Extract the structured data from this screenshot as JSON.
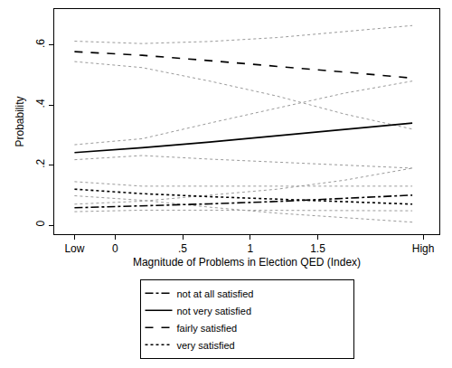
{
  "chart_data": {
    "type": "line",
    "x_label": "Magnitude of Problems in Election QED (Index)",
    "y_label": "Probability",
    "x": [
      -0.3,
      0.2,
      0.7,
      1.2,
      1.7,
      2.2
    ],
    "series": [
      {
        "name": "not at all satisfied",
        "color": "#000000",
        "line_style": "dashdot",
        "values": [
          0.058,
          0.064,
          0.071,
          0.079,
          0.089,
          0.1
        ],
        "lower": [
          0.045,
          0.05,
          0.05,
          0.05,
          0.05,
          0.048
        ],
        "upper": [
          0.07,
          0.08,
          0.1,
          0.12,
          0.15,
          0.19
        ]
      },
      {
        "name": "not very satisfied",
        "color": "#000000",
        "line_style": "solid",
        "values": [
          0.242,
          0.258,
          0.277,
          0.298,
          0.318,
          0.34
        ],
        "lower": [
          0.218,
          0.232,
          0.22,
          0.21,
          0.2,
          0.19
        ],
        "upper": [
          0.268,
          0.288,
          0.34,
          0.39,
          0.44,
          0.48
        ]
      },
      {
        "name": "fairly satisfied",
        "color": "#000000",
        "line_style": "dash",
        "values": [
          0.578,
          0.566,
          0.548,
          0.53,
          0.51,
          0.49
        ],
        "lower": [
          0.545,
          0.525,
          0.48,
          0.43,
          0.37,
          0.32
        ],
        "upper": [
          0.613,
          0.605,
          0.612,
          0.625,
          0.645,
          0.665
        ]
      },
      {
        "name": "very satisfied",
        "color": "#000000",
        "line_style": "dot",
        "values": [
          0.12,
          0.105,
          0.095,
          0.086,
          0.078,
          0.07
        ],
        "lower": [
          0.098,
          0.083,
          0.06,
          0.04,
          0.025,
          0.01
        ],
        "upper": [
          0.145,
          0.13,
          0.13,
          0.13,
          0.13,
          0.13
        ]
      }
    ],
    "xlim": [
      -0.45,
      2.4
    ],
    "xticks": [
      {
        "value": -0.3,
        "label": "Low"
      },
      0,
      {
        "value": 0.5,
        "label": ".5"
      },
      1,
      1.5,
      {
        "value": 2.28,
        "label": "High"
      }
    ],
    "ylim": [
      -0.03,
      0.72
    ],
    "yticks": [
      0,
      {
        "value": 0.2,
        "label": ".2"
      },
      {
        "value": 0.4,
        "label": ".4"
      },
      {
        "value": 0.6,
        "label": ".6"
      }
    ],
    "grid": false,
    "legend": "bottom"
  }
}
